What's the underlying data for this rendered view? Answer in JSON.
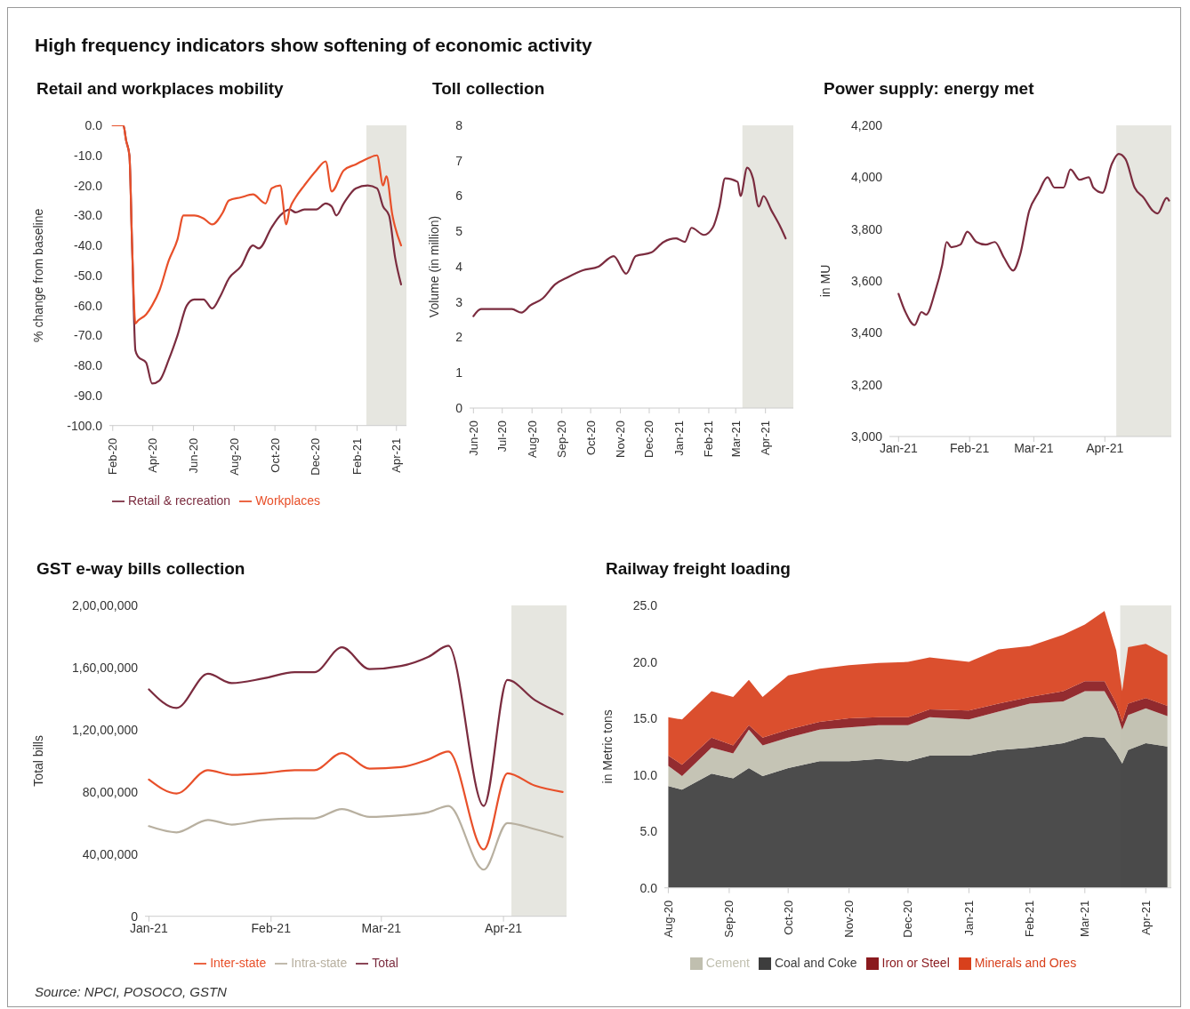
{
  "chart_data": [
    {
      "type": "other",
      "title": "High frequency indicators show softening of economic activity",
      "annotations": [
        "Source: NPCI, POSOCO, GSTN"
      ]
    },
    {
      "type": "line",
      "title": "Retail and workplaces mobility",
      "ylabel": "% change from baseline",
      "legend": "bottom",
      "xlim": [
        "2020-02-10",
        "2021-04-30"
      ],
      "xticks": [
        {
          "value": "2020-02-15",
          "label": "Feb-20"
        },
        {
          "value": "2020-04-15",
          "label": "Apr-20"
        },
        {
          "value": "2020-06-15",
          "label": "Jun-20"
        },
        {
          "value": "2020-08-15",
          "label": "Aug-20"
        },
        {
          "value": "2020-10-15",
          "label": "Oct-20"
        },
        {
          "value": "2020-12-15",
          "label": "Dec-20"
        },
        {
          "value": "2021-02-15",
          "label": "Feb-21"
        },
        {
          "value": "2021-04-15",
          "label": "Apr-21"
        }
      ],
      "ylim": [
        -100,
        0
      ],
      "yticks": [
        {
          "value": 0,
          "label": "0.0"
        },
        {
          "value": -10,
          "label": "-10.0"
        },
        {
          "value": -20,
          "label": "-20.0"
        },
        {
          "value": -30,
          "label": "-30.0"
        },
        {
          "value": -40,
          "label": "-40.0"
        },
        {
          "value": -50,
          "label": "-50.0"
        },
        {
          "value": -60,
          "label": "-60.0"
        },
        {
          "value": -70,
          "label": "-70.0"
        },
        {
          "value": -80,
          "label": "-80.0"
        },
        {
          "value": -90,
          "label": "-90.0"
        },
        {
          "value": -100,
          "label": "-100.0"
        }
      ],
      "bands": [
        {
          "axis": "x",
          "from": "2021-03-01",
          "to": "2021-04-30",
          "color": "#e6e6e0"
        }
      ],
      "series": [
        {
          "name": "Retail & recreation",
          "color": "#7b2c3f",
          "x": [
            "2020-02-15",
            "2020-03-02",
            "2020-03-06",
            "2020-03-11",
            "2020-03-15",
            "2020-03-20",
            "2020-03-24",
            "2020-04-05",
            "2020-04-14",
            "2020-04-25",
            "2020-05-09",
            "2020-05-22",
            "2020-06-05",
            "2020-06-16",
            "2020-06-30",
            "2020-07-13",
            "2020-07-25",
            "2020-08-07",
            "2020-08-25",
            "2020-09-12",
            "2020-09-21",
            "2020-10-10",
            "2020-10-23",
            "2020-11-06",
            "2020-11-15",
            "2020-11-28",
            "2020-12-16",
            "2020-12-30",
            "2021-01-08",
            "2021-01-15",
            "2021-01-26",
            "2021-02-13",
            "2021-03-03",
            "2021-03-17",
            "2021-03-26",
            "2021-04-04",
            "2021-04-13",
            "2021-04-22"
          ],
          "values": [
            0,
            0,
            -5,
            -10,
            -40,
            -75,
            -77,
            -79,
            -86,
            -85,
            -78,
            -70,
            -60,
            -58,
            -58,
            -61,
            -57,
            -51,
            -47,
            -40,
            -41,
            -34,
            -30,
            -28,
            -29,
            -28,
            -28,
            -26,
            -27,
            -30,
            -26,
            -21,
            -20,
            -21,
            -27,
            -30,
            -44,
            -53
          ]
        },
        {
          "name": "Workplaces",
          "color": "#e8502a",
          "x": [
            "2020-02-15",
            "2020-03-02",
            "2020-03-06",
            "2020-03-11",
            "2020-03-15",
            "2020-03-20",
            "2020-03-24",
            "2020-04-05",
            "2020-04-14",
            "2020-04-25",
            "2020-05-09",
            "2020-05-22",
            "2020-05-31",
            "2020-06-16",
            "2020-06-30",
            "2020-07-13",
            "2020-07-29",
            "2020-08-07",
            "2020-08-25",
            "2020-09-12",
            "2020-10-01",
            "2020-10-10",
            "2020-10-23",
            "2020-11-01",
            "2020-11-06",
            "2020-11-15",
            "2020-11-28",
            "2020-12-16",
            "2020-12-30",
            "2021-01-08",
            "2021-01-26",
            "2021-02-13",
            "2021-03-03",
            "2021-03-17",
            "2021-03-26",
            "2021-03-31",
            "2021-04-09",
            "2021-04-22"
          ],
          "values": [
            0,
            0,
            -5,
            -10,
            -40,
            -66,
            -65,
            -63,
            -60,
            -55,
            -45,
            -38,
            -30,
            -30,
            -31,
            -33,
            -29,
            -25,
            -24,
            -23,
            -26,
            -21,
            -20,
            -33,
            -28,
            -24,
            -20,
            -15,
            -12,
            -22,
            -15,
            -13,
            -11,
            -10,
            -20,
            -17,
            -30,
            -40
          ]
        }
      ]
    },
    {
      "type": "line",
      "title": "Toll collection",
      "ylabel": "Volume (in million)",
      "xlim": [
        "2020-05-28",
        "2021-04-30"
      ],
      "xticks": [
        {
          "value": "2020-06-01",
          "label": "Jun-20"
        },
        {
          "value": "2020-07-01",
          "label": "Jul-20"
        },
        {
          "value": "2020-08-01",
          "label": "Aug-20"
        },
        {
          "value": "2020-09-01",
          "label": "Sep-20"
        },
        {
          "value": "2020-10-01",
          "label": "Oct-20"
        },
        {
          "value": "2020-11-01",
          "label": "Nov-20"
        },
        {
          "value": "2020-12-01",
          "label": "Dec-20"
        },
        {
          "value": "2021-01-01",
          "label": "Jan-21"
        },
        {
          "value": "2021-02-01",
          "label": "Feb-21"
        },
        {
          "value": "2021-03-01",
          "label": "Mar-21"
        },
        {
          "value": "2021-04-01",
          "label": "Apr-21"
        }
      ],
      "ylim": [
        0,
        8
      ],
      "yticks": [
        0,
        1,
        2,
        3,
        4,
        5,
        6,
        7,
        8
      ],
      "bands": [
        {
          "axis": "x",
          "from": "2021-03-08",
          "to": "2021-04-30",
          "color": "#e6e6e0"
        }
      ],
      "x": [
        "2020-06-01",
        "2020-06-09",
        "2020-06-22",
        "2020-07-11",
        "2020-07-21",
        "2020-07-30",
        "2020-08-12",
        "2020-08-25",
        "2020-09-07",
        "2020-09-23",
        "2020-10-09",
        "2020-10-25",
        "2020-11-07",
        "2020-11-17",
        "2020-12-03",
        "2020-12-16",
        "2020-12-29",
        "2021-01-07",
        "2021-01-14",
        "2021-01-27",
        "2021-02-05",
        "2021-02-12",
        "2021-02-18",
        "2021-03-03",
        "2021-03-06",
        "2021-03-13",
        "2021-03-19",
        "2021-03-25",
        "2021-03-30",
        "2021-04-07",
        "2021-04-17",
        "2021-04-22"
      ],
      "series": [
        {
          "color": "#7b2c3f",
          "values": [
            2.6,
            2.8,
            2.8,
            2.8,
            2.7,
            2.9,
            3.1,
            3.5,
            3.7,
            3.9,
            4.0,
            4.3,
            3.8,
            4.3,
            4.4,
            4.7,
            4.8,
            4.7,
            5.1,
            4.9,
            5.1,
            5.7,
            6.5,
            6.4,
            6.0,
            6.8,
            6.5,
            5.7,
            6.0,
            5.6,
            5.1,
            4.8
          ]
        }
      ]
    },
    {
      "type": "line",
      "title": "Power supply: energy met",
      "ylabel": "in MU",
      "xlim": [
        "2020-12-28",
        "2021-04-30"
      ],
      "xticks": [
        {
          "value": "2021-01-01",
          "label": "Jan-21"
        },
        {
          "value": "2021-02-01",
          "label": "Feb-21"
        },
        {
          "value": "2021-03-01",
          "label": "Mar-21"
        },
        {
          "value": "2021-04-01",
          "label": "Apr-21"
        }
      ],
      "ylim": [
        3000,
        4200
      ],
      "yticks": [
        {
          "value": 3000,
          "label": "3,000"
        },
        {
          "value": 3200,
          "label": "3,200"
        },
        {
          "value": 3400,
          "label": "3,400"
        },
        {
          "value": 3600,
          "label": "3,600"
        },
        {
          "value": 3800,
          "label": "3,800"
        },
        {
          "value": 4000,
          "label": "4,000"
        },
        {
          "value": 4200,
          "label": "4,200"
        }
      ],
      "bands": [
        {
          "axis": "x",
          "from": "2021-04-06",
          "to": "2021-04-30",
          "color": "#e6e6e0"
        }
      ],
      "x": [
        "2021-01-01",
        "2021-01-04",
        "2021-01-08",
        "2021-01-11",
        "2021-01-13",
        "2021-01-17",
        "2021-01-20",
        "2021-01-22",
        "2021-01-24",
        "2021-01-28",
        "2021-01-31",
        "2021-02-04",
        "2021-02-08",
        "2021-02-12",
        "2021-02-16",
        "2021-02-20",
        "2021-02-23",
        "2021-02-27",
        "2021-03-03",
        "2021-03-07",
        "2021-03-10",
        "2021-03-14",
        "2021-03-17",
        "2021-03-21",
        "2021-03-25",
        "2021-03-27",
        "2021-03-31",
        "2021-04-04",
        "2021-04-07",
        "2021-04-10",
        "2021-04-14",
        "2021-04-18",
        "2021-04-22",
        "2021-04-24",
        "2021-04-28",
        "2021-04-29"
      ],
      "series": [
        {
          "color": "#7b2c3f",
          "values": [
            3550,
            3480,
            3430,
            3480,
            3470,
            3560,
            3660,
            3750,
            3730,
            3740,
            3790,
            3750,
            3740,
            3750,
            3690,
            3640,
            3700,
            3870,
            3940,
            4000,
            3960,
            3960,
            4030,
            3990,
            4000,
            3960,
            3940,
            4050,
            4090,
            4070,
            3960,
            3920,
            3870,
            3860,
            3920,
            3910
          ]
        }
      ]
    },
    {
      "type": "line",
      "title": "GST e-way bills collection",
      "ylabel": "Total bills",
      "legend": "bottom",
      "xlim": [
        "2020-12-31",
        "2021-04-17"
      ],
      "xticks": [
        {
          "value": "2021-01-01",
          "label": "Jan-21"
        },
        {
          "value": "2021-02-01",
          "label": "Feb-21"
        },
        {
          "value": "2021-03-01",
          "label": "Mar-21"
        },
        {
          "value": "2021-04-01",
          "label": "Apr-21"
        }
      ],
      "ylim": [
        0,
        20000000
      ],
      "yticks": [
        {
          "value": 0,
          "label": "0"
        },
        {
          "value": 4000000,
          "label": "40,00,000"
        },
        {
          "value": 8000000,
          "label": "80,00,000"
        },
        {
          "value": 12000000,
          "label": "1,20,00,000"
        },
        {
          "value": 16000000,
          "label": "1,60,00,000"
        },
        {
          "value": 20000000,
          "label": "2,00,00,000"
        }
      ],
      "bands": [
        {
          "axis": "x",
          "from": "2021-04-03",
          "to": "2021-04-17",
          "color": "#e6e6e0"
        }
      ],
      "x": [
        "2021-01-01",
        "2021-01-08",
        "2021-01-16",
        "2021-01-22",
        "2021-01-30",
        "2021-02-07",
        "2021-02-12",
        "2021-02-19",
        "2021-02-26",
        "2021-03-06",
        "2021-03-13",
        "2021-03-18",
        "2021-03-27",
        "2021-04-02",
        "2021-04-09",
        "2021-04-16"
      ],
      "series": [
        {
          "name": "Total",
          "color": "#7b2c3f",
          "values": [
            14600000,
            13400000,
            15600000,
            15000000,
            15300000,
            15700000,
            15700000,
            17300000,
            15900000,
            16100000,
            16700000,
            17400000,
            7100000,
            15200000,
            13900000,
            13000000
          ]
        },
        {
          "name": "Inter-state",
          "color": "#e8502a",
          "values": [
            8800000,
            7900000,
            9400000,
            9100000,
            9200000,
            9400000,
            9400000,
            10500000,
            9500000,
            9600000,
            10100000,
            10600000,
            4300000,
            9200000,
            8400000,
            8000000
          ]
        },
        {
          "name": "Intra-state",
          "color": "#b8b0a0",
          "values": [
            5800000,
            5400000,
            6200000,
            5900000,
            6200000,
            6300000,
            6300000,
            6900000,
            6400000,
            6500000,
            6700000,
            7100000,
            3000000,
            6000000,
            5600000,
            5100000
          ]
        }
      ]
    },
    {
      "type": "area",
      "stacked": true,
      "title": "Railway freight loading",
      "ylabel": "in Metric tons",
      "legend": "bottom",
      "xlim": [
        "2020-07-30",
        "2021-04-14"
      ],
      "xticks": [
        {
          "value": "2020-08-01",
          "label": "Aug-20"
        },
        {
          "value": "2020-09-01",
          "label": "Sep-20"
        },
        {
          "value": "2020-10-01",
          "label": "Oct-20"
        },
        {
          "value": "2020-11-01",
          "label": "Nov-20"
        },
        {
          "value": "2020-12-01",
          "label": "Dec-20"
        },
        {
          "value": "2021-01-01",
          "label": "Jan-21"
        },
        {
          "value": "2021-02-01",
          "label": "Feb-21"
        },
        {
          "value": "2021-03-01",
          "label": "Mar-21"
        },
        {
          "value": "2021-04-01",
          "label": "Apr-21"
        }
      ],
      "ylim": [
        0,
        25
      ],
      "yticks": [
        {
          "value": 0,
          "label": "0.0"
        },
        {
          "value": 5,
          "label": "5.0"
        },
        {
          "value": 10,
          "label": "10.0"
        },
        {
          "value": 15,
          "label": "15.0"
        },
        {
          "value": 20,
          "label": "20.0"
        },
        {
          "value": 25,
          "label": "25.0"
        }
      ],
      "bands": [
        {
          "axis": "x",
          "from": "2021-03-19",
          "to": "2021-04-14",
          "color": "#e6e6e0"
        }
      ],
      "x": [
        "2020-08-01",
        "2020-08-08",
        "2020-08-23",
        "2020-09-03",
        "2020-09-11",
        "2020-09-18",
        "2020-10-01",
        "2020-10-17",
        "2020-11-01",
        "2020-11-16",
        "2020-12-01",
        "2020-12-12",
        "2021-01-01",
        "2021-01-16",
        "2021-02-01",
        "2021-02-18",
        "2021-03-01",
        "2021-03-11",
        "2021-03-17",
        "2021-03-20",
        "2021-03-23",
        "2021-04-01",
        "2021-04-12"
      ],
      "series": [
        {
          "name": "Coal and Coke",
          "color": "#3d3d3d",
          "values": [
            9.0,
            8.7,
            10.1,
            9.7,
            10.6,
            9.9,
            10.6,
            11.2,
            11.2,
            11.4,
            11.2,
            11.7,
            11.7,
            12.2,
            12.4,
            12.8,
            13.4,
            13.3,
            11.9,
            11.0,
            12.2,
            12.8,
            12.5
          ]
        },
        {
          "name": "Cement",
          "color": "#c0bfaf",
          "values": [
            1.8,
            1.2,
            2.3,
            2.2,
            3.4,
            2.7,
            2.7,
            2.8,
            3.0,
            3.0,
            3.2,
            3.4,
            3.2,
            3.4,
            3.9,
            3.7,
            4.0,
            4.1,
            3.7,
            3.0,
            3.1,
            3.1,
            2.7
          ]
        },
        {
          "name": "Iron or Steel",
          "color": "#8a1a1e",
          "values": [
            0.9,
            1.0,
            0.9,
            0.7,
            0.4,
            0.7,
            0.7,
            0.7,
            0.8,
            0.7,
            0.7,
            0.7,
            0.8,
            0.7,
            0.6,
            0.9,
            0.9,
            0.9,
            0.7,
            0.7,
            1.0,
            0.9,
            0.9
          ]
        },
        {
          "name": "Minerals and Ores",
          "color": "#d8401c",
          "values": [
            3.4,
            4.0,
            4.1,
            4.3,
            4.0,
            3.6,
            4.8,
            4.7,
            4.7,
            4.8,
            4.9,
            4.6,
            4.3,
            4.8,
            4.5,
            5.0,
            5.0,
            6.2,
            4.7,
            2.7,
            5.0,
            4.8,
            4.5
          ]
        }
      ]
    }
  ]
}
